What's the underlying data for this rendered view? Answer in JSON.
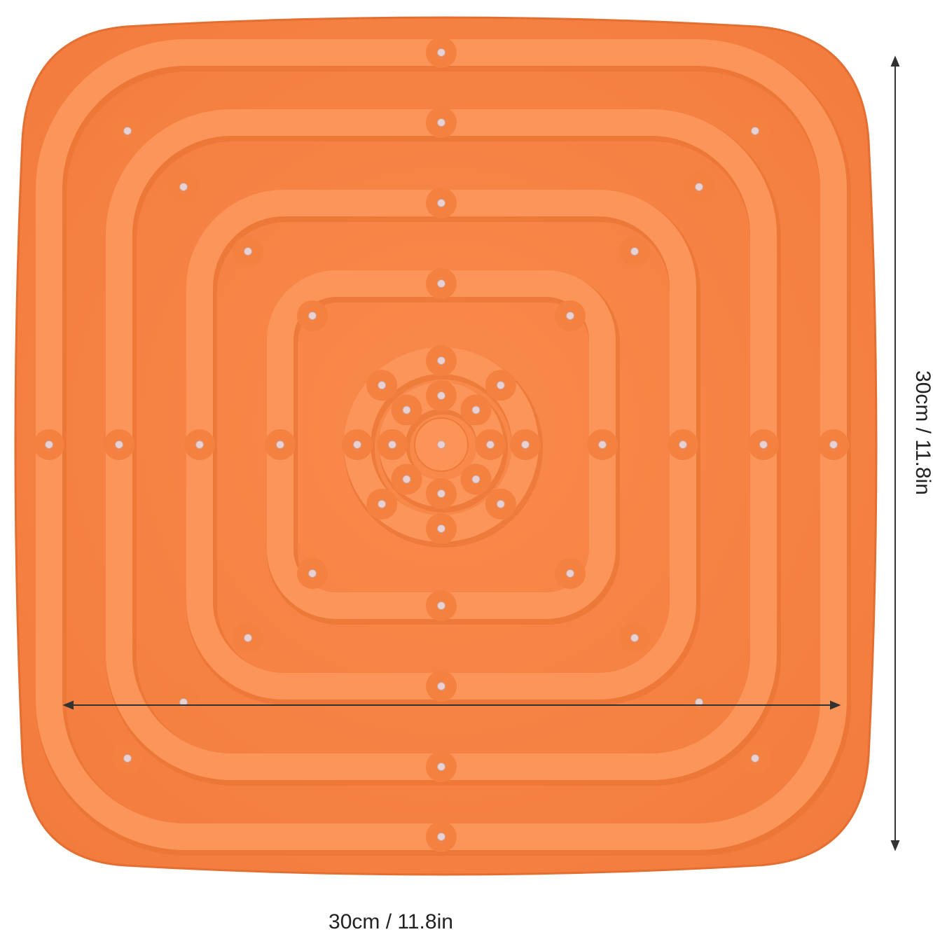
{
  "dimensions": {
    "width_label": "30cm / 11.8in",
    "height_label": "30cm / 11.8in"
  }
}
